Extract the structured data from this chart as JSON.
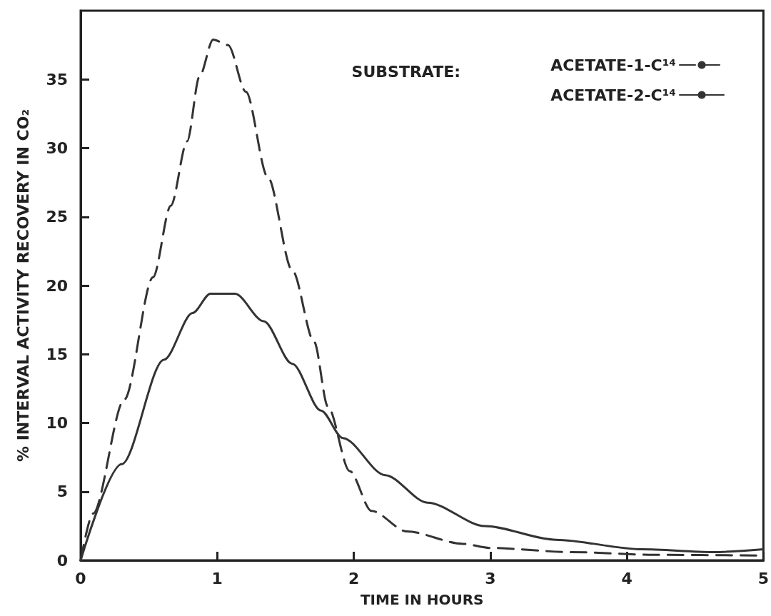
{
  "chart_data": {
    "type": "line",
    "xlabel": "TIME IN HOURS",
    "ylabel": "% INTERVAL ACTIVITY RECOVERY IN CO₂",
    "legend_title": "SUBSTRATE:",
    "xlim": [
      0,
      5
    ],
    "xticks": [
      0,
      1,
      2,
      3,
      4,
      5
    ],
    "ylim": [
      0,
      40
    ],
    "yticks": [
      0,
      5,
      10,
      15,
      20,
      25,
      30,
      35
    ],
    "grid": false,
    "legend": "top right",
    "marker": "none",
    "series": [
      {
        "name": "ACETATE-1-C¹⁴",
        "color": "#333333",
        "line_style": "dashed",
        "x": [
          0,
          0.09,
          0.32,
          0.53,
          0.66,
          0.78,
          0.87,
          0.97,
          1.08,
          1.21,
          1.37,
          1.55,
          1.71,
          1.81,
          1.97,
          2.13,
          2.39,
          2.8,
          3.0,
          3.59,
          4.2,
          5
        ],
        "values": [
          0,
          3.4,
          11.7,
          20.6,
          25.8,
          30.5,
          35.2,
          37.9,
          37.5,
          34.1,
          27.9,
          21.1,
          15.9,
          11.2,
          6.5,
          3.6,
          2.1,
          1.2,
          0.9,
          0.6,
          0.4,
          0.35
        ]
      },
      {
        "name": "ACETATE-2-C¹⁴",
        "color": "#333333",
        "line_style": "solid",
        "x": [
          0,
          0.3,
          0.61,
          0.82,
          0.95,
          1.13,
          1.34,
          1.55,
          1.76,
          1.92,
          2.23,
          2.54,
          2.96,
          3.48,
          4.11,
          4.63,
          5
        ],
        "values": [
          0,
          7.0,
          14.6,
          18.0,
          19.4,
          19.4,
          17.4,
          14.3,
          10.9,
          8.9,
          6.2,
          4.2,
          2.5,
          1.5,
          0.8,
          0.6,
          0.8
        ]
      }
    ]
  }
}
